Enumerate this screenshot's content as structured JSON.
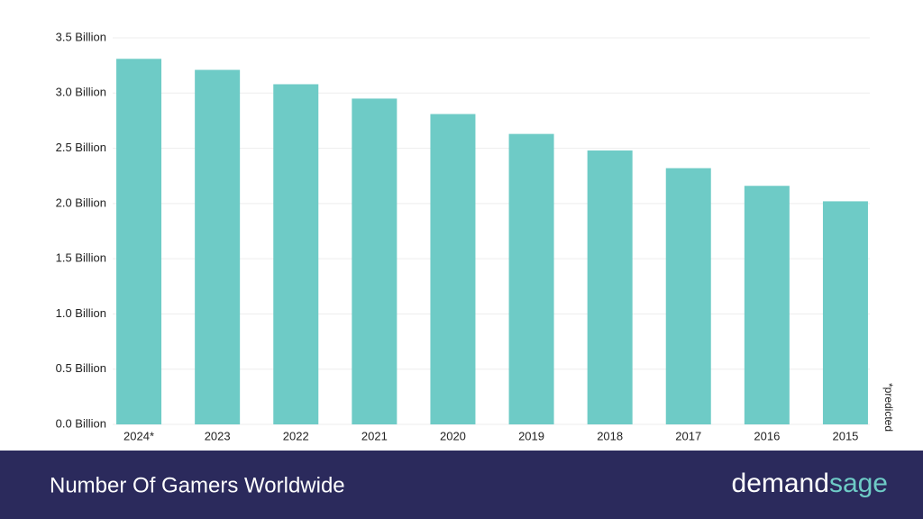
{
  "chart_data": {
    "type": "bar",
    "title": "Number Of Gamers Worldwide",
    "brand": [
      "demand",
      "sage"
    ],
    "note": "*predicted",
    "categories": [
      "2024*",
      "2023",
      "2022",
      "2021",
      "2020",
      "2019",
      "2018",
      "2017",
      "2016",
      "2015"
    ],
    "values": [
      3.31,
      3.21,
      3.08,
      2.95,
      2.81,
      2.63,
      2.48,
      2.32,
      2.16,
      2.02
    ],
    "color": "#6ecbc6",
    "ylim": [
      0,
      3.5
    ],
    "yticks": [
      {
        "value": 0,
        "label": "0.0 Billion"
      },
      {
        "value": 0.5,
        "label": "0.5 Billion"
      },
      {
        "value": 1,
        "label": "1.0 Billion"
      },
      {
        "value": 1.5,
        "label": "1.5 Billion"
      },
      {
        "value": 2,
        "label": "2.0 Billion"
      },
      {
        "value": 2.5,
        "label": "2.5 Billion"
      },
      {
        "value": 3,
        "label": "3.0 Billion"
      },
      {
        "value": 3.5,
        "label": "3.5 Billion"
      }
    ],
    "grid": true
  }
}
